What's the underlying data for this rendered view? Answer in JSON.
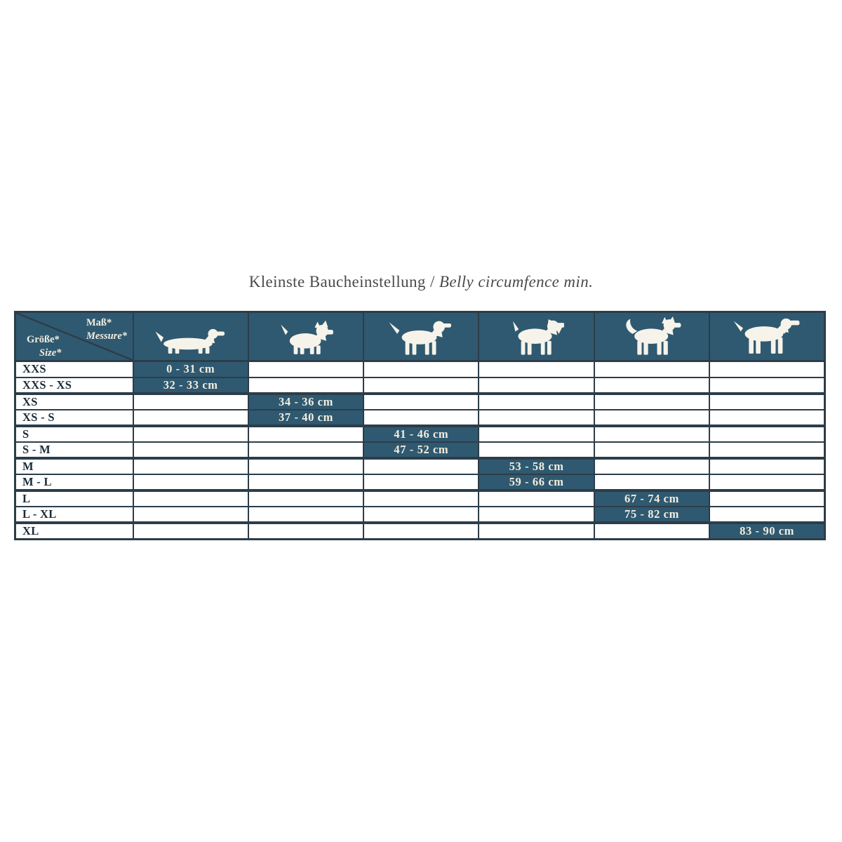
{
  "title": {
    "de": "Kleinste Baucheinstellung",
    "sep": " / ",
    "en": "Belly circumfence min."
  },
  "corner": {
    "mass": "Maß*",
    "messure": "Messure*",
    "groesse": "Größe*",
    "size": "Size*"
  },
  "dog_icons": [
    "dachshund-icon",
    "terrier-icon",
    "pointer-icon",
    "schnauzer-icon",
    "husky-icon",
    "great-dane-icon"
  ],
  "colors": {
    "teal": "#2f5970",
    "border": "#2c3d49",
    "cream": "#f2edde",
    "label": "#1b2c38",
    "title": "#4a4a4a"
  },
  "chart_data": {
    "type": "table",
    "title": "Kleinste Baucheinstellung / Belly circumfence min.",
    "corner_headers": {
      "columns_axis": "Maß* / Messure*",
      "rows_axis": "Größe* / Size*"
    },
    "columns": [
      "dachshund",
      "terrier",
      "pointer",
      "schnauzer",
      "husky",
      "great-dane"
    ],
    "rows": [
      {
        "label": "XXS",
        "range": "0 - 31 cm",
        "col": 0
      },
      {
        "label": "XXS - XS",
        "range": "32 - 33 cm",
        "col": 0
      },
      {
        "label": "XS",
        "range": "34 - 36 cm",
        "col": 1
      },
      {
        "label": "XS - S",
        "range": "37 - 40 cm",
        "col": 1
      },
      {
        "label": "S",
        "range": "41 - 46 cm",
        "col": 2
      },
      {
        "label": "S - M",
        "range": "47 - 52 cm",
        "col": 2
      },
      {
        "label": "M",
        "range": "53 - 58 cm",
        "col": 3
      },
      {
        "label": "M - L",
        "range": "59 - 66 cm",
        "col": 3
      },
      {
        "label": "L",
        "range": "67 - 74 cm",
        "col": 4
      },
      {
        "label": "L - XL",
        "range": "75 - 82 cm",
        "col": 4
      },
      {
        "label": "XL",
        "range": "83 - 90 cm",
        "col": 5
      }
    ]
  }
}
